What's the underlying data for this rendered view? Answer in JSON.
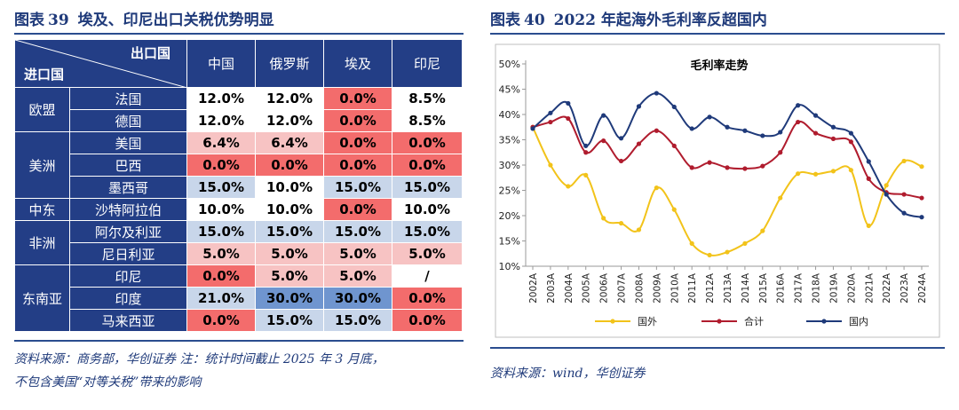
{
  "left_panel": {
    "title_prefix": "图表",
    "title_num": "39",
    "title_text": "埃及、印尼出口关税优势明显",
    "corner_export": "出口国",
    "corner_import": "进口国",
    "countries": [
      "中国",
      "俄罗斯",
      "埃及",
      "印尼"
    ],
    "rows": [
      {
        "region": "欧盟",
        "span": 2,
        "name": "法国",
        "cells": [
          {
            "v": "12.0%",
            "c": "white"
          },
          {
            "v": "12.0%",
            "c": "white"
          },
          {
            "v": "0.0%",
            "c": "red"
          },
          {
            "v": "8.5%",
            "c": "white"
          }
        ]
      },
      {
        "name": "德国",
        "cells": [
          {
            "v": "12.0%",
            "c": "white"
          },
          {
            "v": "12.0%",
            "c": "white"
          },
          {
            "v": "0.0%",
            "c": "red"
          },
          {
            "v": "8.5%",
            "c": "white"
          }
        ]
      },
      {
        "region": "美洲",
        "span": 3,
        "name": "美国",
        "cells": [
          {
            "v": "6.4%",
            "c": "pink"
          },
          {
            "v": "6.4%",
            "c": "pink"
          },
          {
            "v": "0.0%",
            "c": "red"
          },
          {
            "v": "0.0%",
            "c": "red"
          }
        ]
      },
      {
        "name": "巴西",
        "cells": [
          {
            "v": "0.0%",
            "c": "red"
          },
          {
            "v": "0.0%",
            "c": "red"
          },
          {
            "v": "0.0%",
            "c": "red"
          },
          {
            "v": "0.0%",
            "c": "red"
          }
        ]
      },
      {
        "name": "墨西哥",
        "cells": [
          {
            "v": "15.0%",
            "c": "blue"
          },
          {
            "v": "10.0%",
            "c": "white"
          },
          {
            "v": "15.0%",
            "c": "blue"
          },
          {
            "v": "15.0%",
            "c": "blue"
          }
        ]
      },
      {
        "region": "中东",
        "span": 1,
        "name": "沙特阿拉伯",
        "cells": [
          {
            "v": "10.0%",
            "c": "white"
          },
          {
            "v": "10.0%",
            "c": "white"
          },
          {
            "v": "0.0%",
            "c": "red"
          },
          {
            "v": "10.0%",
            "c": "white"
          }
        ]
      },
      {
        "region": "非洲",
        "span": 2,
        "name": "阿尔及利亚",
        "cells": [
          {
            "v": "15.0%",
            "c": "blue"
          },
          {
            "v": "15.0%",
            "c": "blue"
          },
          {
            "v": "15.0%",
            "c": "blue"
          },
          {
            "v": "15.0%",
            "c": "blue"
          }
        ]
      },
      {
        "name": "尼日利亚",
        "cells": [
          {
            "v": "5.0%",
            "c": "pink"
          },
          {
            "v": "5.0%",
            "c": "pink"
          },
          {
            "v": "5.0%",
            "c": "pink"
          },
          {
            "v": "5.0%",
            "c": "pink"
          }
        ]
      },
      {
        "region": "东南亚",
        "span": 3,
        "name": "印尼",
        "cells": [
          {
            "v": "0.0%",
            "c": "red"
          },
          {
            "v": "5.0%",
            "c": "pink"
          },
          {
            "v": "5.0%",
            "c": "pink"
          },
          {
            "v": "/",
            "c": "white"
          }
        ]
      },
      {
        "name": "印度",
        "cells": [
          {
            "v": "21.0%",
            "c": "blue"
          },
          {
            "v": "30.0%",
            "c": "dblue"
          },
          {
            "v": "30.0%",
            "c": "dblue"
          },
          {
            "v": "0.0%",
            "c": "red"
          }
        ]
      },
      {
        "name": "马来西亚",
        "cells": [
          {
            "v": "0.0%",
            "c": "red"
          },
          {
            "v": "15.0%",
            "c": "blue"
          },
          {
            "v": "15.0%",
            "c": "blue"
          },
          {
            "v": "0.0%",
            "c": "red"
          }
        ]
      }
    ],
    "source_line1": "资料来源：商务部，华创证券 注：统计时间截止 2025 年 3 月底，",
    "source_line2": "不包含美国“对等关税”带来的影响"
  },
  "right_panel": {
    "title_prefix": "图表",
    "title_num": "40",
    "title_text": "2022 年起海外毛利率反超国内",
    "source": "资料来源：wind，华创证券"
  },
  "colors": {
    "overseas": "#f2c31a",
    "total": "#b01c2e",
    "domestic": "#1f3a7a"
  },
  "chart_data": {
    "type": "line",
    "title": "毛利率走势",
    "x": [
      "2002A",
      "2003A",
      "2004A",
      "2005A",
      "2006A",
      "2007A",
      "2008A",
      "2009A",
      "2010A",
      "2011A",
      "2012A",
      "2013A",
      "2014A",
      "2015A",
      "2016A",
      "2017A",
      "2018A",
      "2019A",
      "2020A",
      "2021A",
      "2022A",
      "2023A",
      "2024A"
    ],
    "yticks": [
      "10%",
      "15%",
      "20%",
      "25%",
      "30%",
      "35%",
      "40%",
      "45%",
      "50%"
    ],
    "ylim": [
      10,
      50
    ],
    "legend_position": "bottom",
    "series": [
      {
        "name": "国外",
        "key": "overseas",
        "values": [
          37.5,
          30,
          25.8,
          28,
          19.5,
          18.5,
          17.2,
          25.5,
          21.2,
          14.5,
          12.2,
          12.8,
          14.5,
          17,
          23.5,
          28.3,
          28.2,
          28.8,
          29,
          18,
          26,
          30.8,
          29.7
        ]
      },
      {
        "name": "合计",
        "key": "total",
        "values": [
          37.5,
          38.5,
          39.2,
          32.5,
          34.8,
          30.8,
          34.2,
          36.8,
          33.8,
          29.5,
          30.5,
          29.5,
          29.3,
          29.8,
          32.5,
          38.5,
          36.3,
          35.2,
          34.6,
          27.3,
          24.6,
          24.2,
          23.5
        ]
      },
      {
        "name": "国内",
        "key": "domestic",
        "values": [
          37.2,
          40.3,
          42.2,
          33.8,
          39.8,
          35.3,
          41.6,
          44.2,
          41.5,
          37.2,
          39.5,
          37.5,
          36.8,
          35.8,
          36.5,
          41.8,
          39.8,
          37.5,
          36.3,
          30.7,
          24.2,
          20.5,
          19.7
        ]
      }
    ]
  }
}
